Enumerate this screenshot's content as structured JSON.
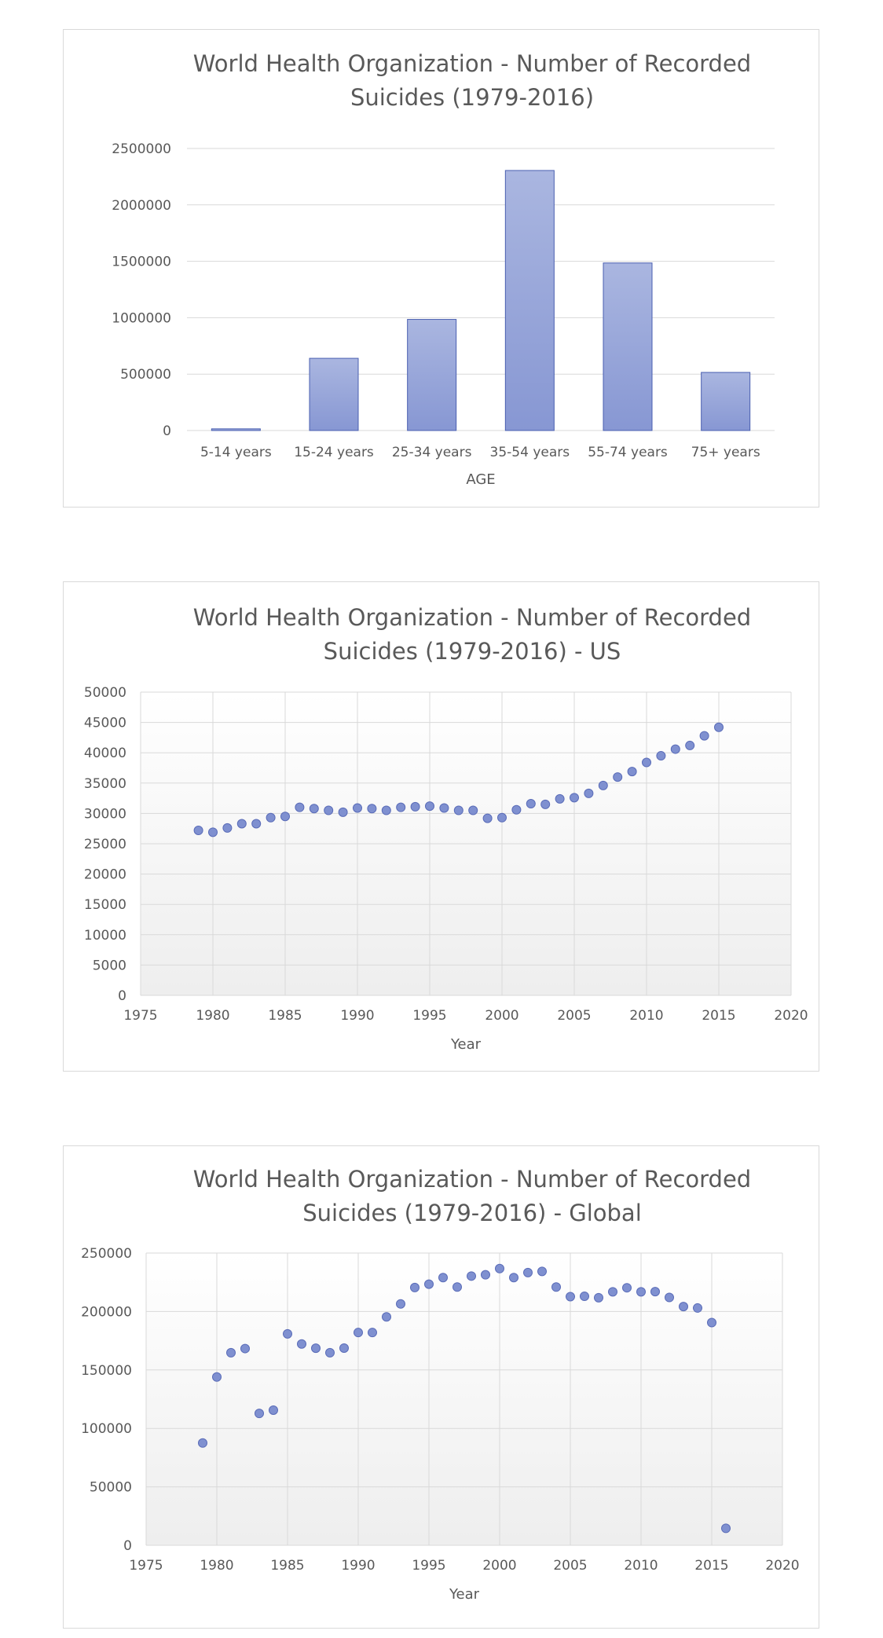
{
  "colors": {
    "bar_fill_top": "#aab6e0",
    "bar_fill_bottom": "#8797d3",
    "bar_stroke": "#4a5fb0",
    "marker_fill": "#7f90d0",
    "marker_stroke": "#5a6cb8",
    "gridline": "#d9d9d9",
    "plot_bg_top": "#ffffff",
    "plot_bg_bottom": "#eeeeee",
    "text": "#595959"
  },
  "chart_data": [
    {
      "type": "bar",
      "title": [
        "World Health Organization - Number of Recorded",
        "Suicides (1979-2016)"
      ],
      "xlabel": "AGE",
      "ylabel": "",
      "ylim": [
        0,
        2500000
      ],
      "yticks": [
        "0",
        "500000",
        "1000000",
        "1500000",
        "2000000",
        "2500000"
      ],
      "categories": [
        "5-14 years",
        "15-24 years",
        "25-34 years",
        "35-54 years",
        "55-74 years",
        "75+ years"
      ],
      "values": [
        15000,
        640000,
        985000,
        2305000,
        1485000,
        515000
      ],
      "grid": "horizontal"
    },
    {
      "type": "scatter",
      "title": [
        "World Health Organization - Number of Recorded",
        "Suicides (1979-2016) - US"
      ],
      "xlabel": "Year",
      "ylabel": "",
      "xlim": [
        1975,
        2020
      ],
      "ylim": [
        0,
        50000
      ],
      "xticks": [
        "1975",
        "1980",
        "1985",
        "1990",
        "1995",
        "2000",
        "2005",
        "2010",
        "2015",
        "2020"
      ],
      "yticks": [
        "0",
        "5000",
        "10000",
        "15000",
        "20000",
        "25000",
        "30000",
        "35000",
        "40000",
        "45000",
        "50000"
      ],
      "grid": "both",
      "x": [
        1979,
        1980,
        1981,
        1982,
        1983,
        1984,
        1985,
        1986,
        1987,
        1988,
        1989,
        1990,
        1991,
        1992,
        1993,
        1994,
        1995,
        1996,
        1997,
        1998,
        1999,
        2000,
        2001,
        2002,
        2003,
        2004,
        2005,
        2006,
        2007,
        2008,
        2009,
        2010,
        2011,
        2012,
        2013,
        2014,
        2015
      ],
      "y": [
        27200,
        26900,
        27600,
        28300,
        28300,
        29300,
        29500,
        31000,
        30800,
        30500,
        30200,
        30900,
        30800,
        30500,
        31000,
        31100,
        31200,
        30900,
        30500,
        30500,
        29200,
        29300,
        30600,
        31600,
        31500,
        32400,
        32600,
        33300,
        34600,
        36000,
        36900,
        38400,
        39500,
        40600,
        41200,
        42800,
        44200
      ]
    },
    {
      "type": "scatter",
      "title": [
        "World Health Organization - Number of Recorded",
        "Suicides (1979-2016) - Global"
      ],
      "xlabel": "Year",
      "ylabel": "",
      "xlim": [
        1975,
        2020
      ],
      "ylim": [
        0,
        250000
      ],
      "xticks": [
        "1975",
        "1980",
        "1985",
        "1990",
        "1995",
        "2000",
        "2005",
        "2010",
        "2015",
        "2020"
      ],
      "yticks": [
        "0",
        "50000",
        "100000",
        "150000",
        "200000",
        "250000"
      ],
      "grid": "both",
      "x": [
        1979,
        1980,
        1981,
        1982,
        1983,
        1984,
        1985,
        1986,
        1987,
        1988,
        1989,
        1990,
        1991,
        1992,
        1993,
        1994,
        1995,
        1996,
        1997,
        1998,
        1999,
        2000,
        2001,
        2002,
        2003,
        2004,
        2005,
        2006,
        2007,
        2008,
        2009,
        2010,
        2011,
        2012,
        2013,
        2014,
        2015,
        2016
      ],
      "y": [
        87500,
        144000,
        164700,
        168300,
        112800,
        115600,
        180900,
        172200,
        168600,
        164700,
        168700,
        182000,
        182000,
        195400,
        206500,
        220500,
        223400,
        229000,
        220900,
        230300,
        231400,
        236700,
        229000,
        233300,
        234300,
        220900,
        212700,
        213000,
        211800,
        216800,
        220300,
        216800,
        217000,
        212000,
        204200,
        203000,
        190500,
        14500
      ]
    }
  ]
}
